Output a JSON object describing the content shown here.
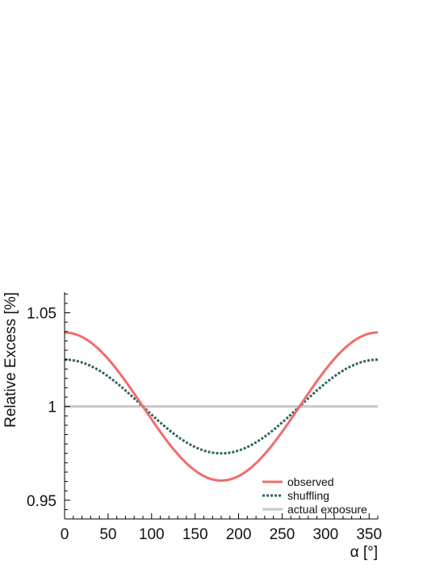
{
  "chart_data": {
    "type": "line",
    "title": "",
    "xlabel": "α [°]",
    "ylabel": "Relative Excess [%]",
    "xlim": [
      0,
      360
    ],
    "ylim": [
      0.94,
      1.061
    ],
    "x_ticks": [
      0,
      50,
      100,
      150,
      200,
      250,
      300,
      350
    ],
    "x_tick_labels": [
      "0",
      "50",
      "100",
      "150",
      "200",
      "250",
      "300",
      "350"
    ],
    "y_ticks": [
      0.95,
      1.0,
      1.05
    ],
    "y_tick_labels": [
      "0.95",
      "1",
      "1.05"
    ],
    "grid": false,
    "legend_position": "bottom-right",
    "x": [
      0,
      30,
      60,
      90,
      120,
      150,
      180,
      210,
      240,
      270,
      300,
      330,
      360
    ],
    "series": [
      {
        "name": "observed",
        "color": "#f26b6b",
        "style": "solid",
        "values": [
          1.0395,
          1.0342,
          1.0198,
          1.0,
          0.9803,
          0.9658,
          0.9605,
          0.9658,
          0.9803,
          1.0,
          1.0198,
          1.0342,
          1.0395
        ]
      },
      {
        "name": "shuffling",
        "color": "#2f6464",
        "style": "dotted",
        "values": [
          1.025,
          1.0217,
          1.0125,
          1.0,
          0.9875,
          0.9783,
          0.975,
          0.9783,
          0.9875,
          1.0,
          1.0125,
          1.0217,
          1.025
        ]
      },
      {
        "name": "actual exposure",
        "color": "#c8c8c8",
        "style": "solid",
        "values": [
          1.0,
          1.0,
          1.0,
          1.0,
          1.0,
          1.0,
          1.0,
          1.0,
          1.0,
          1.0,
          1.0,
          1.0,
          1.0
        ]
      }
    ]
  }
}
